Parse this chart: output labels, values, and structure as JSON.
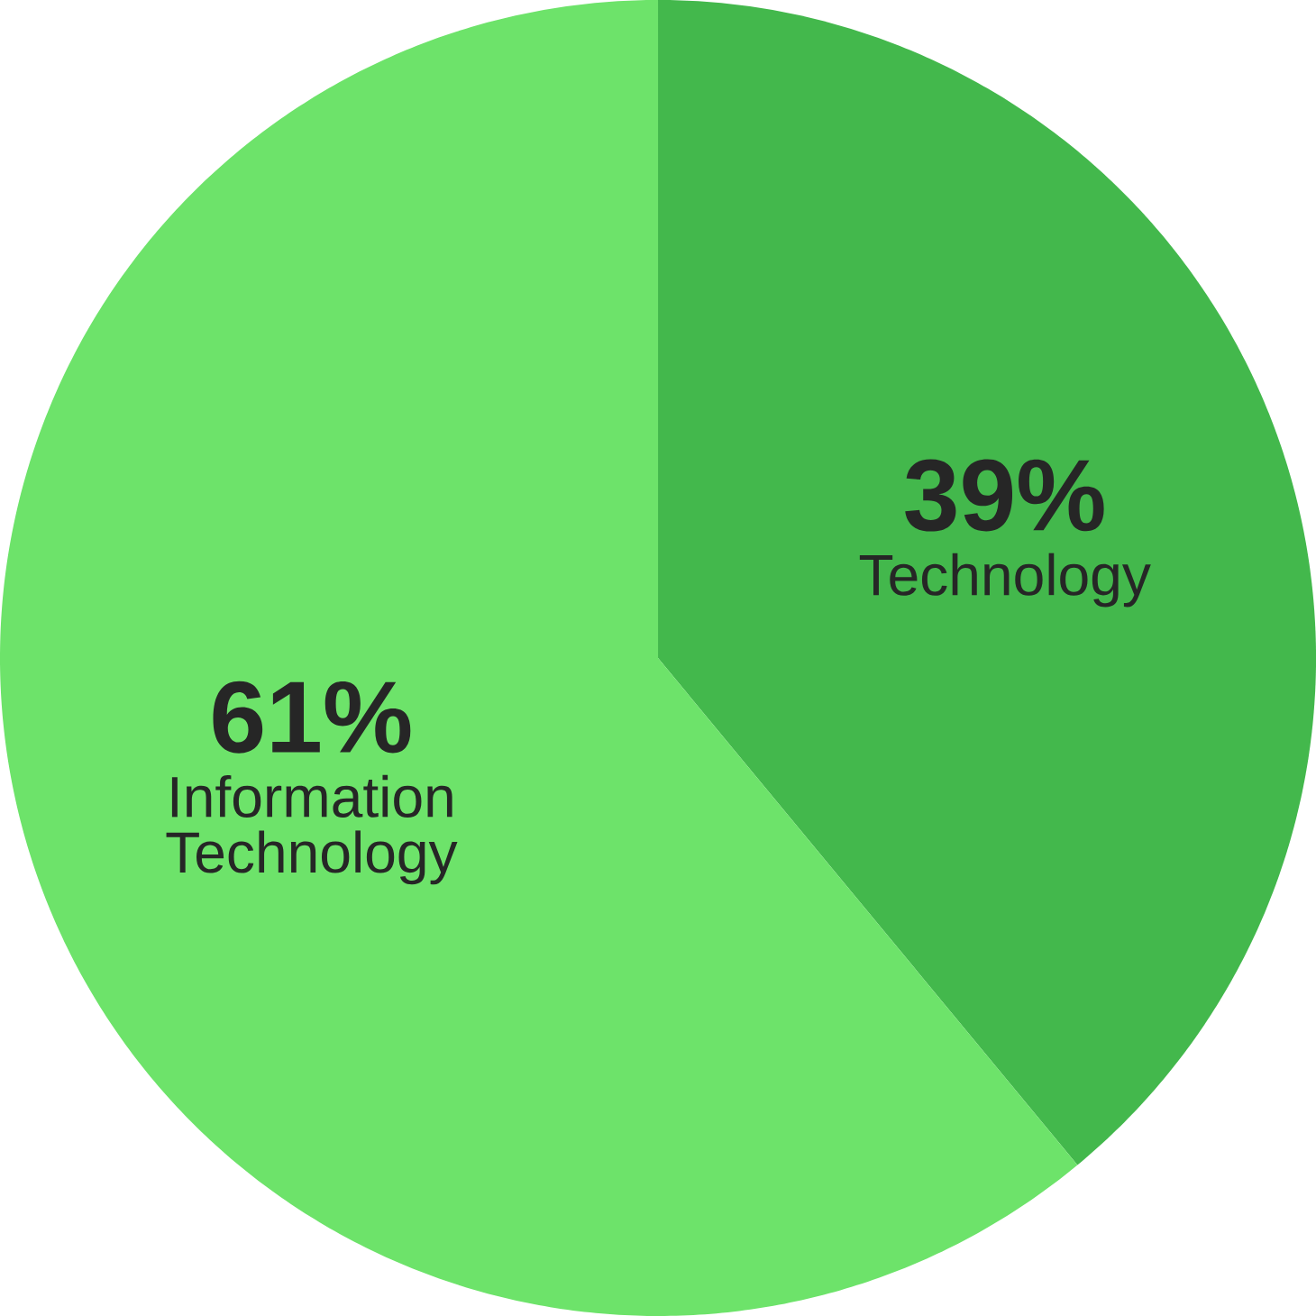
{
  "chart_data": {
    "type": "pie",
    "categories": [
      "Technology",
      "Information Technology"
    ],
    "values": [
      39,
      61
    ],
    "colors": [
      "#43b84c",
      "#6de36a"
    ],
    "value_labels": [
      "39%",
      "61%"
    ],
    "legend": false
  }
}
